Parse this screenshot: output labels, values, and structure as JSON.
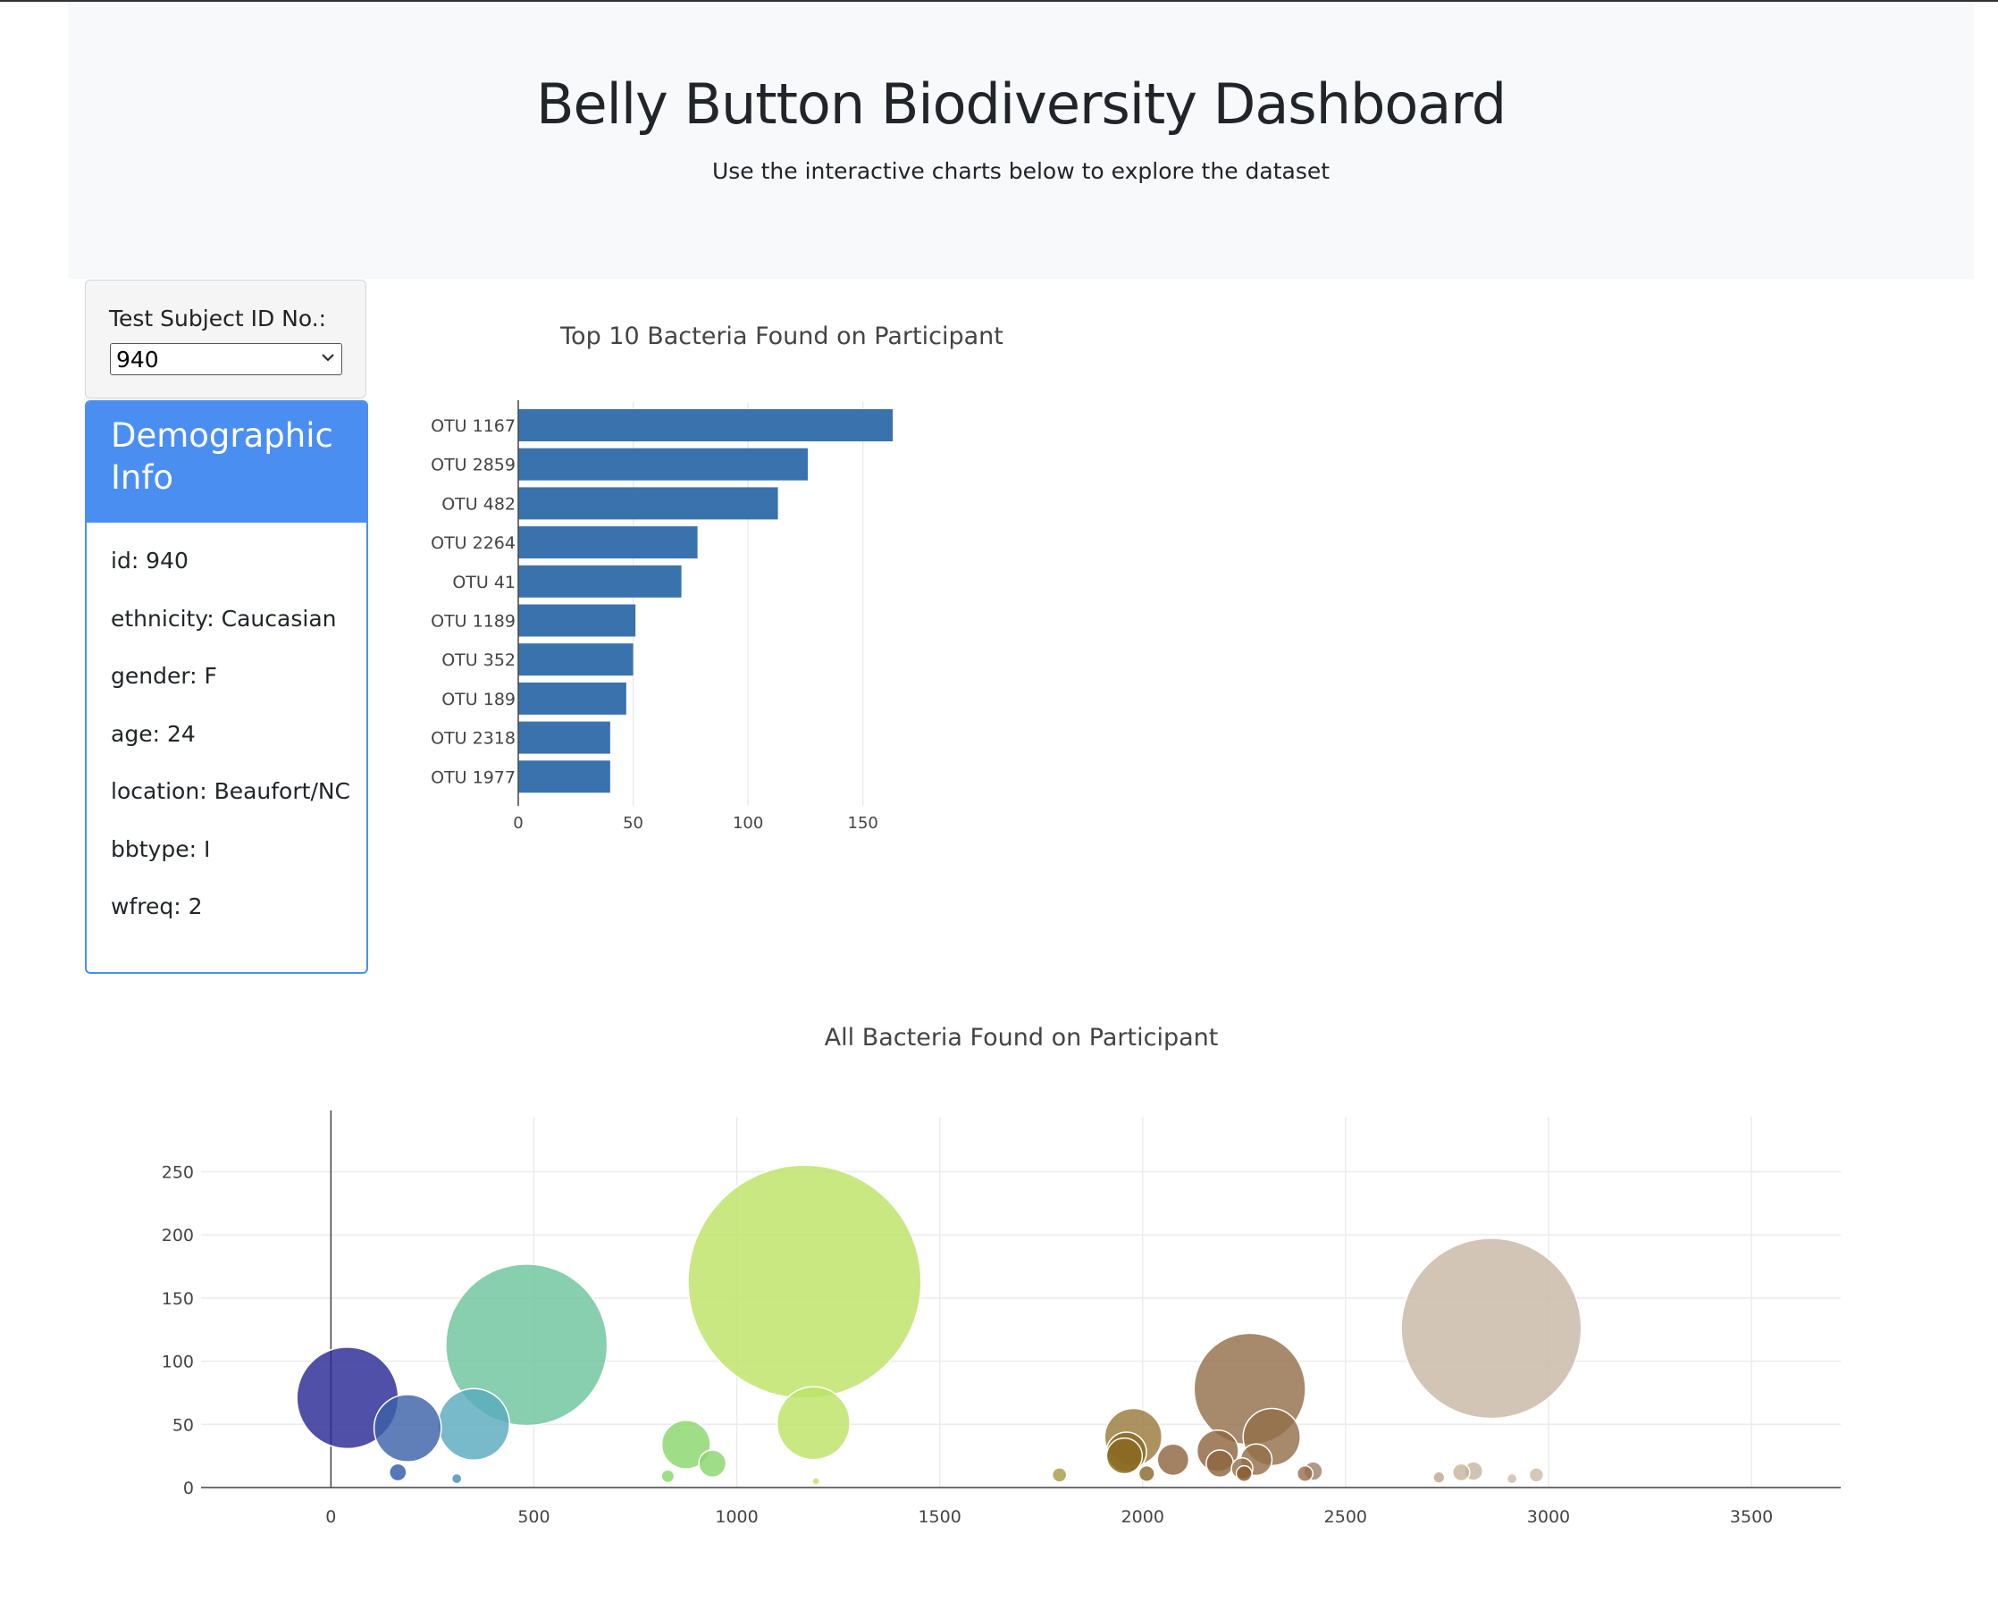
{
  "header": {
    "title": "Belly Button Biodiversity Dashboard",
    "subtitle": "Use the interactive charts below to explore the dataset"
  },
  "selector": {
    "label": "Test Subject ID No.:",
    "selected": "940"
  },
  "demographics": {
    "title_line1": "Demographic",
    "title_line2": "Info",
    "rows": [
      "id: 940",
      "ethnicity: Caucasian",
      "gender: F",
      "age: 24",
      "location: Beaufort/NC",
      "bbtype: I",
      "wfreq: 2"
    ]
  },
  "chart_data": [
    {
      "type": "bar",
      "orientation": "horizontal",
      "title": "Top 10 Bacteria Found on Participant",
      "categories": [
        "OTU 1167",
        "OTU 2859",
        "OTU 482",
        "OTU 2264",
        "OTU 41",
        "OTU 1189",
        "OTU 352",
        "OTU 189",
        "OTU 2318",
        "OTU 1977"
      ],
      "values": [
        163,
        126,
        113,
        78,
        71,
        51,
        50,
        47,
        40,
        40
      ],
      "xlim": [
        0,
        175
      ],
      "xticks": [
        0,
        50,
        100,
        150
      ],
      "color": "#3a72ae",
      "grid": true
    },
    {
      "type": "scatter",
      "subtype": "bubble",
      "title": "All Bacteria Found on Participant",
      "xlim": [
        -320,
        3720
      ],
      "ylim": [
        0,
        290
      ],
      "xticks": [
        0,
        500,
        1000,
        1500,
        2000,
        2500,
        3000,
        3500
      ],
      "yticks": [
        0,
        50,
        100,
        150,
        200,
        250
      ],
      "grid": true,
      "points": [
        {
          "x": 41,
          "y": 71,
          "color": "#2a2a95"
        },
        {
          "x": 189,
          "y": 47,
          "color": "#3d61a8"
        },
        {
          "x": 165,
          "y": 12,
          "color": "#2f5aa6"
        },
        {
          "x": 352,
          "y": 50,
          "color": "#5aabbe"
        },
        {
          "x": 310,
          "y": 7,
          "color": "#4a8fb8"
        },
        {
          "x": 482,
          "y": 113,
          "color": "#6cc49c"
        },
        {
          "x": 875,
          "y": 34,
          "color": "#8bd66c"
        },
        {
          "x": 940,
          "y": 19,
          "color": "#8bd66c"
        },
        {
          "x": 830,
          "y": 9,
          "color": "#8bd66c"
        },
        {
          "x": 1167,
          "y": 163,
          "color": "#bde366"
        },
        {
          "x": 1189,
          "y": 51,
          "color": "#bde366"
        },
        {
          "x": 1195,
          "y": 5,
          "color": "#bde366"
        },
        {
          "x": 1795,
          "y": 10,
          "color": "#a89a4a"
        },
        {
          "x": 1977,
          "y": 40,
          "color": "#9a7a3a"
        },
        {
          "x": 1960,
          "y": 28,
          "color": "#8a6a2a"
        },
        {
          "x": 1955,
          "y": 25,
          "color": "#8a6a20"
        },
        {
          "x": 2010,
          "y": 11,
          "color": "#8a6a2a"
        },
        {
          "x": 2075,
          "y": 22,
          "color": "#8e6640"
        },
        {
          "x": 2185,
          "y": 29,
          "color": "#8e6640"
        },
        {
          "x": 2190,
          "y": 19,
          "color": "#8e6640"
        },
        {
          "x": 2264,
          "y": 78,
          "color": "#946f4a"
        },
        {
          "x": 2318,
          "y": 40,
          "color": "#946f4a"
        },
        {
          "x": 2280,
          "y": 22,
          "color": "#946f4a"
        },
        {
          "x": 2245,
          "y": 15,
          "color": "#946f4a"
        },
        {
          "x": 2250,
          "y": 11,
          "color": "#8a5a30"
        },
        {
          "x": 2400,
          "y": 11,
          "color": "#9a7050"
        },
        {
          "x": 2420,
          "y": 13,
          "color": "#a0806a"
        },
        {
          "x": 2730,
          "y": 8,
          "color": "#c0a890"
        },
        {
          "x": 2785,
          "y": 12,
          "color": "#c8b4a0"
        },
        {
          "x": 2815,
          "y": 13,
          "color": "#c8b4a0"
        },
        {
          "x": 2859,
          "y": 126,
          "color": "#c8b8a6"
        },
        {
          "x": 2910,
          "y": 7,
          "color": "#cdbcaa"
        },
        {
          "x": 2970,
          "y": 10,
          "color": "#cdbcaa"
        }
      ]
    }
  ]
}
